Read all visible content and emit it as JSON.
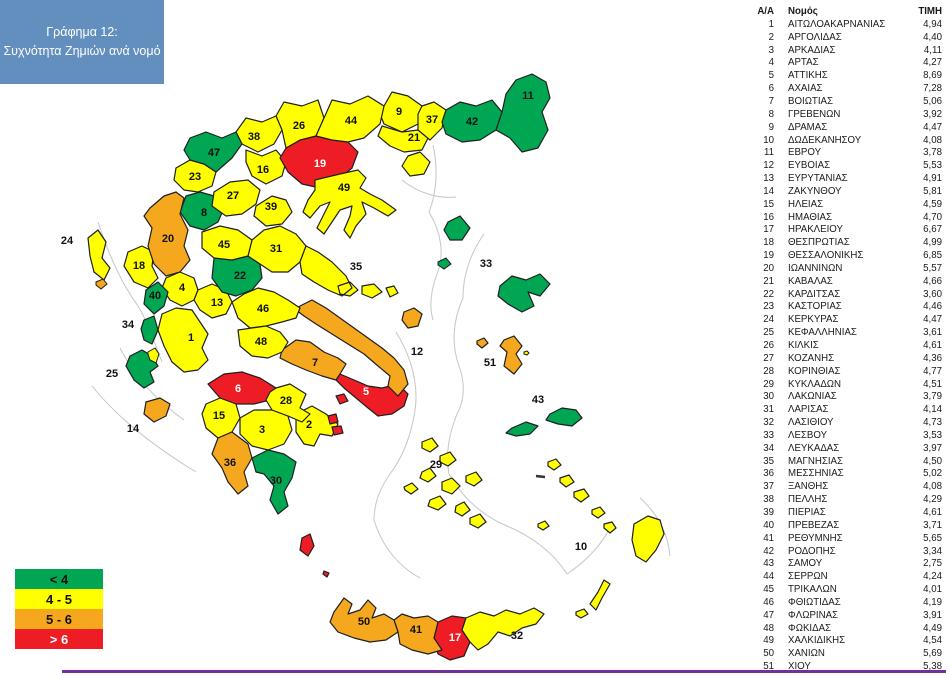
{
  "title": {
    "line1": "Γράφημα 12:",
    "line2": "Συχνότητα Ζημιών ανά νομό"
  },
  "colors": {
    "green": "#00A651",
    "yellow": "#FFFF00",
    "orange": "#F5A81E",
    "red": "#EE1C25",
    "title_bg": "#628FBE",
    "divider": "#7030A0",
    "sea_line": "#C6C6C6",
    "border": "#1f1f1f",
    "label_dark": "#111111",
    "label_light": "#FFFFFF"
  },
  "legend": {
    "items": [
      {
        "label": "< 4",
        "category": "green",
        "text": "dark"
      },
      {
        "label": "4  -  5",
        "category": "yellow",
        "text": "dark"
      },
      {
        "label": "5  -  6",
        "category": "orange",
        "text": "dark"
      },
      {
        "label": "> 6",
        "category": "red",
        "text": "light"
      }
    ],
    "bins": [
      {
        "rule": "< 4",
        "color": "green"
      },
      {
        "rule": "4 - 5",
        "color": "yellow"
      },
      {
        "rule": "5 - 6",
        "color": "orange"
      },
      {
        "rule": "> 6",
        "color": "red"
      }
    ]
  },
  "table": {
    "headers": {
      "index": "Α/Α",
      "name": "Νομός",
      "value": "ΤΙΜΗ"
    }
  },
  "chart_data": {
    "type": "heatmap",
    "subtype": "choropleth-map-of-greece-prefectures",
    "title": "Γράφημα 12: Συχνότητα Ζημιών ανά νομό",
    "value_column": "ΤΙΜΗ",
    "legend_position": "bottom-left",
    "regions": [
      {
        "id": 1,
        "name": "ΑΙΤΩΛΟΑΚΑΡΝΑΝΙΑΣ",
        "value": 4.94
      },
      {
        "id": 2,
        "name": "ΑΡΓΟΛΙΔΑΣ",
        "value": 4.4
      },
      {
        "id": 3,
        "name": "ΑΡΚΑΔΙΑΣ",
        "value": 4.11
      },
      {
        "id": 4,
        "name": "ΑΡΤΑΣ",
        "value": 4.27
      },
      {
        "id": 5,
        "name": "ΑΤΤΙΚΗΣ",
        "value": 8.69
      },
      {
        "id": 6,
        "name": "ΑΧΑΙΑΣ",
        "value": 7.28
      },
      {
        "id": 7,
        "name": "ΒΟΙΩΤΙΑΣ",
        "value": 5.06
      },
      {
        "id": 8,
        "name": "ΓΡΕΒΕΝΩΝ",
        "value": 3.92
      },
      {
        "id": 9,
        "name": "ΔΡΑΜΑΣ",
        "value": 4.47
      },
      {
        "id": 10,
        "name": "ΔΩΔΕΚΑΝΗΣΟΥ",
        "value": 4.08
      },
      {
        "id": 11,
        "name": "ΕΒΡΟΥ",
        "value": 3.78
      },
      {
        "id": 12,
        "name": "ΕΥΒΟΙΑΣ",
        "value": 5.53
      },
      {
        "id": 13,
        "name": "ΕΥΡΥΤΑΝΙΑΣ",
        "value": 4.91
      },
      {
        "id": 14,
        "name": "ΖΑΚΥΝΘΟΥ",
        "value": 5.81
      },
      {
        "id": 15,
        "name": "ΗΛΕΙΑΣ",
        "value": 4.59
      },
      {
        "id": 16,
        "name": "ΗΜΑΘΙΑΣ",
        "value": 4.7
      },
      {
        "id": 17,
        "name": "ΗΡΑΚΛΕΙΟΥ",
        "value": 6.67
      },
      {
        "id": 18,
        "name": "ΘΕΣΠΡΩΤΙΑΣ",
        "value": 4.99
      },
      {
        "id": 19,
        "name": "ΘΕΣΣΑΛΟΝΙΚΗΣ",
        "value": 6.85
      },
      {
        "id": 20,
        "name": "ΙΩΑΝΝΙΝΩΝ",
        "value": 5.57
      },
      {
        "id": 21,
        "name": "ΚΑΒΑΛΑΣ",
        "value": 4.66
      },
      {
        "id": 22,
        "name": "ΚΑΡΔΙΤΣΑΣ",
        "value": 3.6
      },
      {
        "id": 23,
        "name": "ΚΑΣΤΟΡΙΑΣ",
        "value": 4.46
      },
      {
        "id": 24,
        "name": "ΚΕΡΚΥΡΑΣ",
        "value": 4.47
      },
      {
        "id": 25,
        "name": "ΚΕΦΑΛΛΗΝΙΑΣ",
        "value": 3.61
      },
      {
        "id": 26,
        "name": "ΚΙΛΚΙΣ",
        "value": 4.61
      },
      {
        "id": 27,
        "name": "ΚΟΖΑΝΗΣ",
        "value": 4.36
      },
      {
        "id": 28,
        "name": "ΚΟΡΙΝΘΙΑΣ",
        "value": 4.77
      },
      {
        "id": 29,
        "name": "ΚΥΚΛΑΔΩΝ",
        "value": 4.51
      },
      {
        "id": 30,
        "name": "ΛΑΚΩΝΙΑΣ",
        "value": 3.79
      },
      {
        "id": 31,
        "name": "ΛΑΡΙΣΑΣ",
        "value": 4.14
      },
      {
        "id": 32,
        "name": "ΛΑΣΙΘΙΟΥ",
        "value": 4.73
      },
      {
        "id": 33,
        "name": "ΛΕΣΒΟΥ",
        "value": 3.53
      },
      {
        "id": 34,
        "name": "ΛΕΥΚΑΔΑΣ",
        "value": 3.97
      },
      {
        "id": 35,
        "name": "ΜΑΓΝΗΣΙΑΣ",
        "value": 4.5
      },
      {
        "id": 36,
        "name": "ΜΕΣΣΗΝΙΑΣ",
        "value": 5.02
      },
      {
        "id": 37,
        "name": "ΞΑΝΘΗΣ",
        "value": 4.08
      },
      {
        "id": 38,
        "name": "ΠΕΛΛΗΣ",
        "value": 4.29
      },
      {
        "id": 39,
        "name": "ΠΙΕΡΙΑΣ",
        "value": 4.61
      },
      {
        "id": 40,
        "name": "ΠΡΕΒΕΖΑΣ",
        "value": 3.71
      },
      {
        "id": 41,
        "name": "ΡΕΘΥΜΝΗΣ",
        "value": 5.65
      },
      {
        "id": 42,
        "name": "ΡΟΔΟΠΗΣ",
        "value": 3.34
      },
      {
        "id": 43,
        "name": "ΣΑΜΟΥ",
        "value": 2.75
      },
      {
        "id": 44,
        "name": "ΣΕΡΡΩΝ",
        "value": 4.24
      },
      {
        "id": 45,
        "name": "ΤΡΙΚΑΛΩΝ",
        "value": 4.01
      },
      {
        "id": 46,
        "name": "ΦΘΙΩΤΙΔΑΣ",
        "value": 4.19
      },
      {
        "id": 47,
        "name": "ΦΛΩΡΙΝΑΣ",
        "value": 3.91
      },
      {
        "id": 48,
        "name": "ΦΩΚΙΔΑΣ",
        "value": 4.49
      },
      {
        "id": 49,
        "name": "ΧΑΛΚΙΔΙΚΗΣ",
        "value": 4.54
      },
      {
        "id": 50,
        "name": "ΧΑΝΙΩΝ",
        "value": 5.69
      },
      {
        "id": 51,
        "name": "ΧΙΟΥ",
        "value": 5.38
      }
    ]
  }
}
